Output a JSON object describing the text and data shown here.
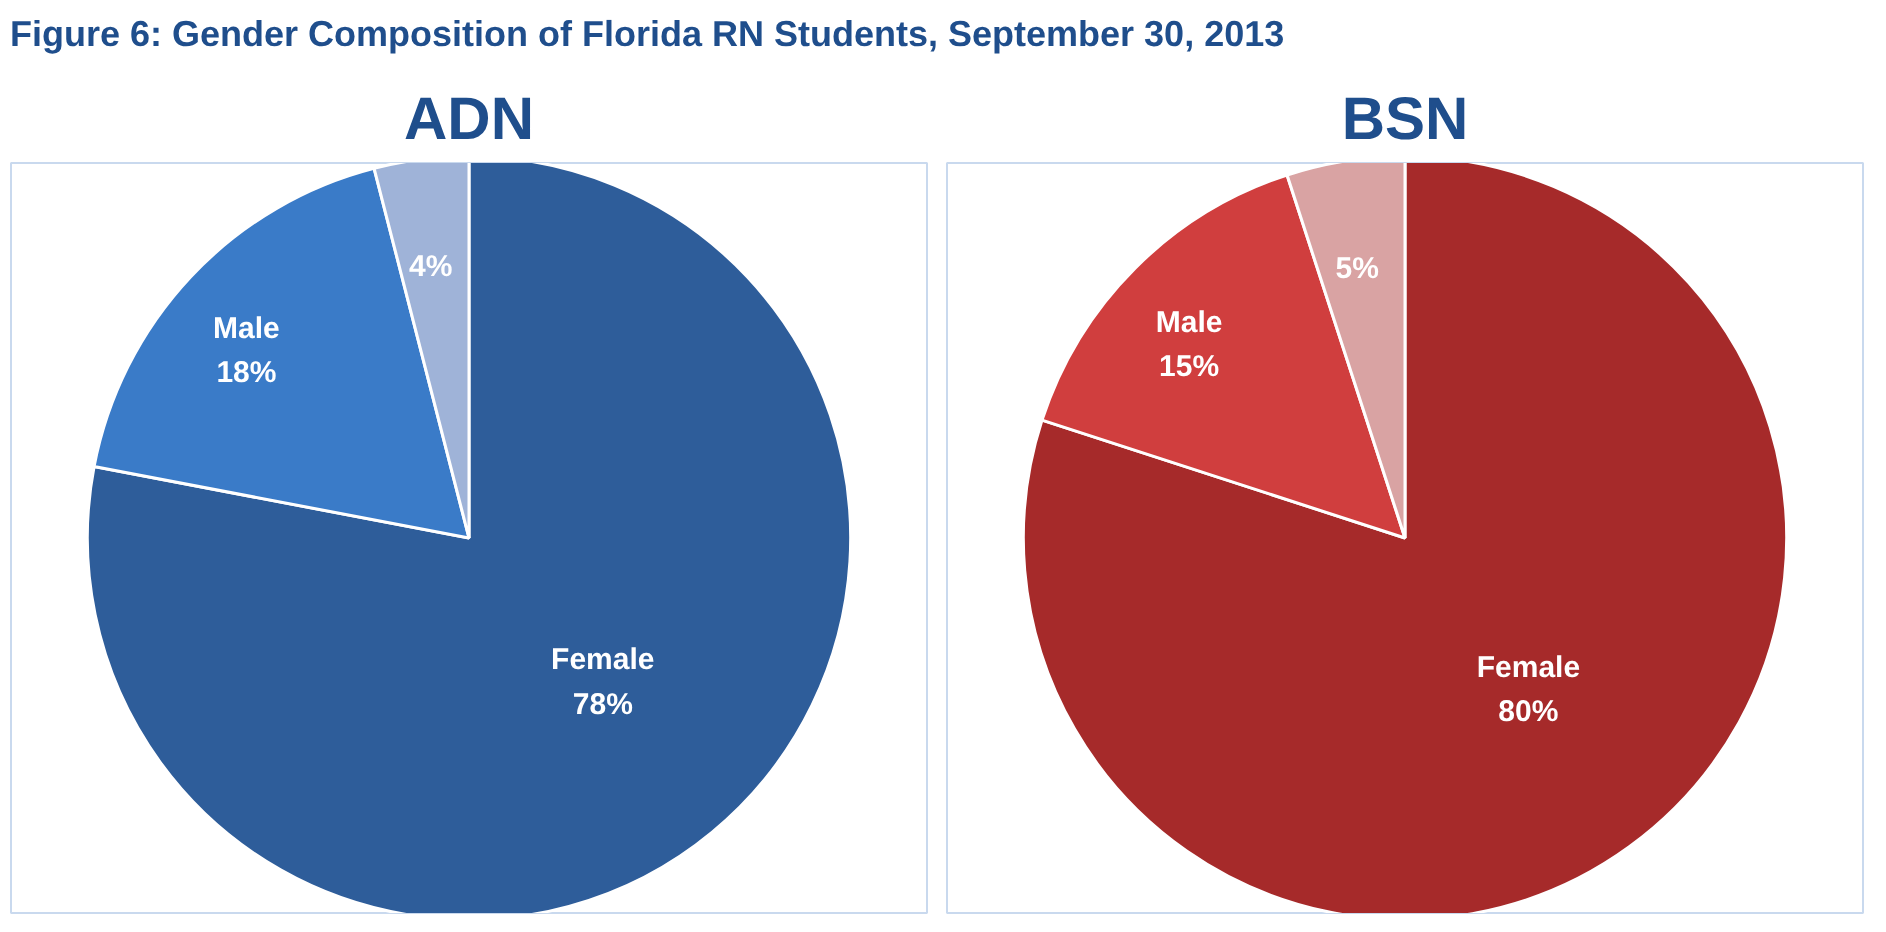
{
  "chart_data": [
    {
      "type": "pie",
      "title": "ADN",
      "categories": [
        "Female",
        "Male",
        null
      ],
      "values": [
        78,
        18,
        4
      ],
      "colors": [
        "#2e5d9a",
        "#3a7bc8",
        "#9fb3d8"
      ],
      "value_labels": [
        "78%",
        "18%",
        "4%"
      ],
      "annotations": [
        "Figure 6: Gender Composition of Florida RN Students, September 30, 2013"
      ]
    },
    {
      "type": "pie",
      "title": "BSN",
      "categories": [
        "Female",
        "Male",
        null
      ],
      "values": [
        80,
        15,
        5
      ],
      "colors": [
        "#a62a2a",
        "#d03e3e",
        "#d9a3a3"
      ],
      "value_labels": [
        "80%",
        "15%",
        "5%"
      ]
    }
  ]
}
